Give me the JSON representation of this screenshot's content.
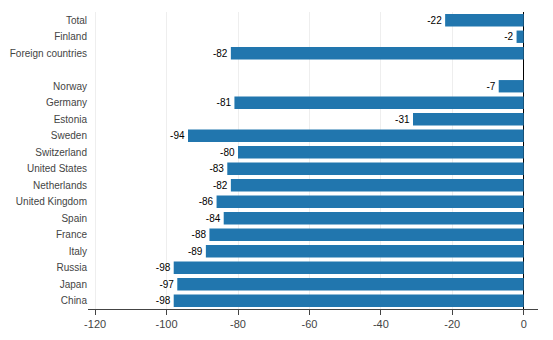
{
  "chart_data": {
    "type": "bar",
    "orientation": "horizontal",
    "categories": [
      "China",
      "Japan",
      "Russia",
      "Italy",
      "France",
      "Spain",
      "United Kingdom",
      "Netherlands",
      "United States",
      "Switzerland",
      "Sweden",
      "Estonia",
      "Germany",
      "Norway",
      null,
      "Foreign countries",
      "Finland",
      "Total"
    ],
    "values": [
      -98,
      -97,
      -98,
      -89,
      -88,
      -84,
      -86,
      -82,
      -83,
      -80,
      -94,
      -31,
      -81,
      -7,
      null,
      -82,
      -2,
      -22
    ],
    "color": "#2176ae",
    "xlim": [
      -122,
      4
    ],
    "xticks": [
      -120,
      -100,
      -80,
      -60,
      -40,
      -20,
      0
    ],
    "grid": true,
    "data_labels": true
  }
}
